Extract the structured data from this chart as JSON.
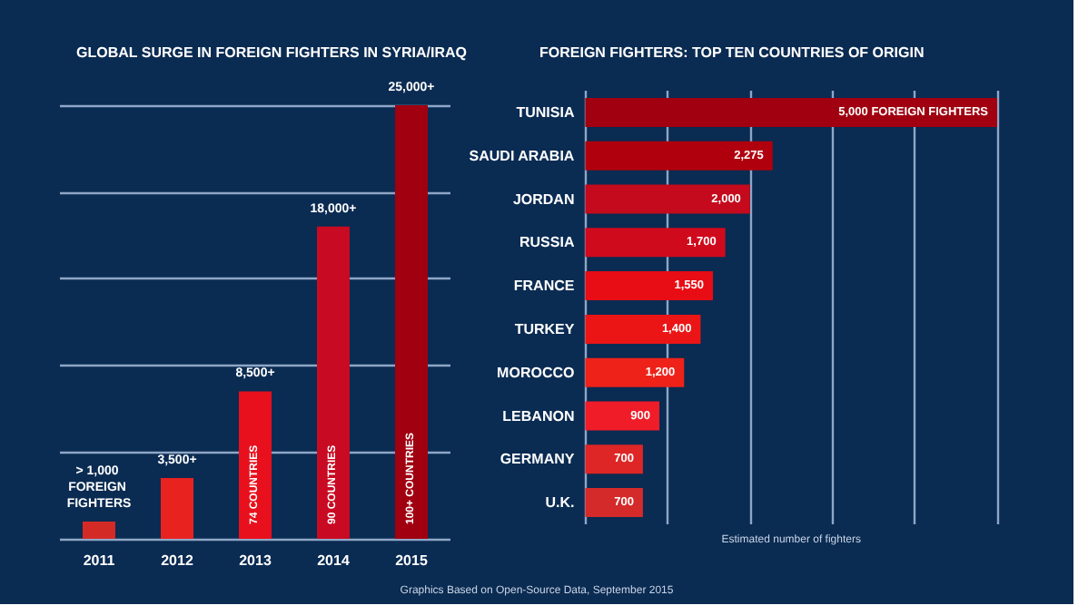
{
  "chart_data": [
    {
      "type": "bar",
      "title": "GLOBAL SURGE IN FOREIGN FIGHTERS IN SYRIA/IRAQ",
      "categories": [
        "2011",
        "2012",
        "2013",
        "2014",
        "2015"
      ],
      "values": [
        1000,
        3500,
        8500,
        18000,
        25000
      ],
      "colors": [
        "#d42a26",
        "#e8231f",
        "#e8101c",
        "#c80a22",
        "#a00010"
      ],
      "value_labels": [
        "> 1,000 FOREIGN FIGHTERS",
        "3,500+",
        "8,500+",
        "18,000+",
        "25,000+"
      ],
      "ylim": [
        0,
        25000
      ],
      "yticks": [
        {
          "value": 0,
          "label": null
        },
        {
          "value": 5000,
          "label": null
        },
        {
          "value": 10000,
          "label": null
        },
        {
          "value": 15000,
          "label": null
        },
        {
          "value": 20000,
          "label": null
        },
        {
          "value": 25000,
          "label": null
        }
      ],
      "tick_labels": "x",
      "grid": "y",
      "annotations": [
        "74 COUNTRIES",
        "90 COUNTRIES",
        "100+ COUNTRIES"
      ]
    },
    {
      "type": "bar",
      "orientation": "horizontal",
      "title": "FOREIGN FIGHTERS: TOP TEN COUNTRIES OF ORIGIN",
      "xlabel": "Estimated number of fighters",
      "categories": [
        "TUNISIA",
        "SAUDI ARABIA",
        "JORDAN",
        "RUSSIA",
        "FRANCE",
        "TURKEY",
        "MOROCCO",
        "LEBANON",
        "GERMANY",
        "U.K."
      ],
      "values": [
        5000,
        2275,
        2000,
        1700,
        1550,
        1400,
        1200,
        900,
        700,
        700
      ],
      "colors": [
        "#a0000f",
        "#b0000e",
        "#c40a1c",
        "#d00a1d",
        "#e80c14",
        "#ec1515",
        "#ee2219",
        "#f01c28",
        "#de2626",
        "#d42a2a"
      ],
      "value_labels": [
        "5,000 FOREIGN FIGHTERS",
        "2,275",
        "2,000",
        "1,700",
        "1,550",
        "1,400",
        "1,200",
        "900",
        "700",
        "700"
      ],
      "xlim": [
        0,
        5000
      ],
      "xticks": [
        {
          "value": 0,
          "label": null
        },
        {
          "value": 1000,
          "label": null
        },
        {
          "value": 2000,
          "label": null
        },
        {
          "value": 3000,
          "label": null
        },
        {
          "value": 4000,
          "label": null
        },
        {
          "value": 5000,
          "label": null
        }
      ],
      "tick_labels": "y",
      "grid": "x",
      "annotations": [
        "Graphics Based on Open-Source Data, September 2015"
      ]
    }
  ]
}
